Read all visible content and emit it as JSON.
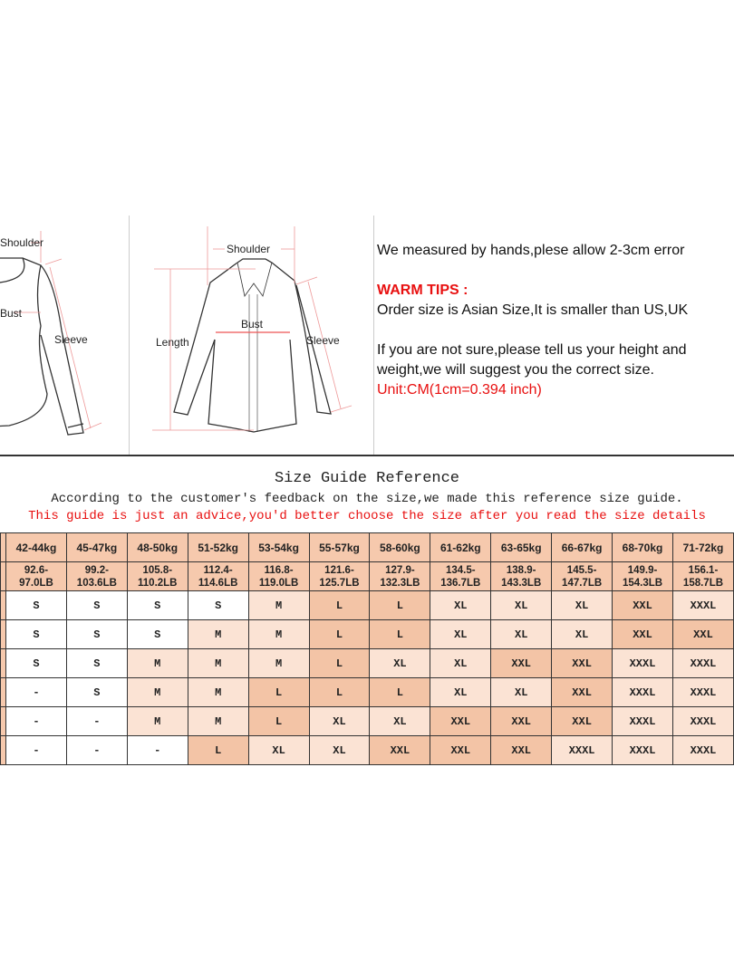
{
  "diagram_left": {
    "shoulder": "Shoulder",
    "bust": "Bust",
    "sleeve": "Sleeve"
  },
  "diagram_right": {
    "shoulder": "Shoulder",
    "bust": "Bust",
    "length": "Length",
    "sleeve": "Sleeve"
  },
  "info": {
    "line1": "We measured by hands,plese allow 2-3cm error",
    "warm_tips": "WARM TIPS :",
    "line2": "Order size is Asian Size,It is smaller than US,UK",
    "line3": "If you are not sure,please tell us your height and",
    "line4": "weight,we will suggest you the correct size.",
    "unit": "Unit:CM(1cm=0.394 inch)"
  },
  "guide": {
    "title": "Size Guide Reference",
    "subtitle": "According to the customer's feedback on the size,we made this reference size guide.",
    "warning": "This guide is just an advice,you'd better choose the size after you read the size details"
  },
  "colors": {
    "header": "#f6c9ad",
    "light": "#fbe3d4",
    "dark": "#f3c4a6",
    "red": "#e81010"
  },
  "table": {
    "kg": [
      "42-44kg",
      "45-47kg",
      "48-50kg",
      "51-52kg",
      "53-54kg",
      "55-57kg",
      "58-60kg",
      "61-62kg",
      "63-65kg",
      "66-67kg",
      "68-70kg",
      "71-72kg"
    ],
    "lb": [
      "92.6-97.0LB",
      "99.2-103.6LB",
      "105.8-110.2LB",
      "112.4-114.6LB",
      "116.8-119.0LB",
      "121.6-125.7LB",
      "127.9-132.3LB",
      "134.5-136.7LB",
      "138.9-143.3LB",
      "145.5-147.7LB",
      "149.9-154.3LB",
      "156.1-158.7LB"
    ],
    "rows": [
      [
        "S",
        "S",
        "S",
        "S",
        "M",
        "L",
        "L",
        "XL",
        "XL",
        "XL",
        "XXL",
        "XXXL"
      ],
      [
        "S",
        "S",
        "S",
        "M",
        "M",
        "L",
        "L",
        "XL",
        "XL",
        "XL",
        "XXL",
        "XXL"
      ],
      [
        "S",
        "S",
        "M",
        "M",
        "M",
        "L",
        "XL",
        "XL",
        "XXL",
        "XXL",
        "XXXL",
        "XXXL"
      ],
      [
        "-",
        "S",
        "M",
        "M",
        "L",
        "L",
        "L",
        "XL",
        "XL",
        "XXL",
        "XXXL",
        "XXXL"
      ],
      [
        "-",
        "-",
        "M",
        "M",
        "L",
        "XL",
        "XL",
        "XXL",
        "XXL",
        "XXL",
        "XXXL",
        "XXXL"
      ],
      [
        "-",
        "-",
        "-",
        "L",
        "XL",
        "XL",
        "XXL",
        "XXL",
        "XXL",
        "XXXL",
        "XXXL",
        "XXXL"
      ]
    ]
  }
}
